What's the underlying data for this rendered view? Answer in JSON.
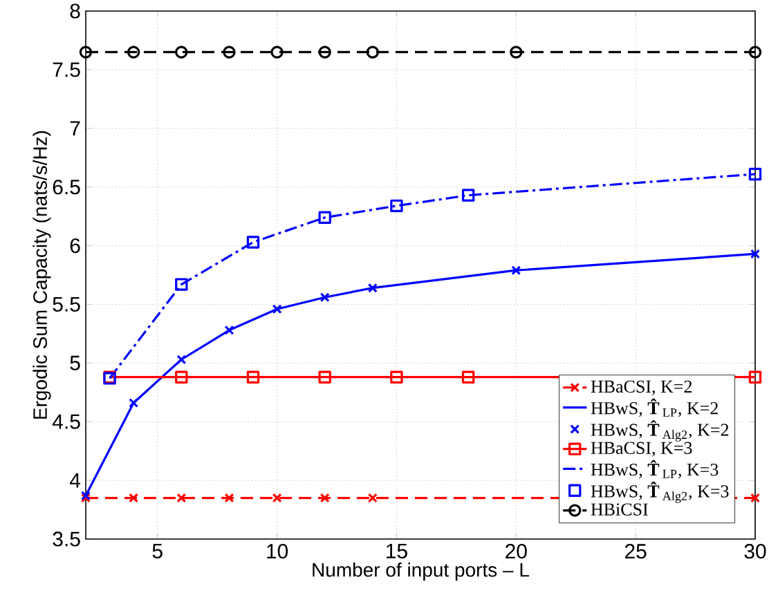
{
  "chart_data": {
    "type": "line",
    "xlabel": "Number of input ports – L",
    "ylabel": "Ergodic Sum Capacity (nats/s/Hz)",
    "xlim": [
      2,
      30
    ],
    "ylim": [
      3.5,
      8
    ],
    "xticks": [
      5,
      10,
      15,
      20,
      25,
      30
    ],
    "yticks": [
      3.5,
      4,
      4.5,
      5,
      5.5,
      6,
      6.5,
      7,
      7.5,
      8
    ],
    "grid": true,
    "legend": "bottom right",
    "series": [
      {
        "name": "HBaCSI, K=2",
        "color": "#ff0000",
        "marker": "cross",
        "line_style": "dashed",
        "x": [
          2,
          4,
          6,
          8,
          10,
          12,
          14,
          30
        ],
        "values": [
          3.85,
          3.85,
          3.85,
          3.85,
          3.85,
          3.85,
          3.85,
          3.85
        ]
      },
      {
        "name": "HBwS, **T̂**$_{LP}$, K=2",
        "color": "#0000ff",
        "marker": "none",
        "line_style": "solid",
        "x": [
          2,
          4,
          6,
          8,
          10,
          12,
          14,
          20,
          30
        ],
        "values": [
          3.87,
          4.66,
          5.03,
          5.28,
          5.46,
          5.56,
          5.64,
          5.79,
          5.93
        ]
      },
      {
        "name": "HBwS, **T̂**$_{Alg2}$, K=2",
        "color": "#0000ff",
        "type": "scatter",
        "marker": "cross",
        "x": [
          2,
          4,
          6,
          8,
          10,
          12,
          14,
          20,
          30
        ],
        "values": [
          3.87,
          4.66,
          5.03,
          5.28,
          5.46,
          5.56,
          5.64,
          5.79,
          5.93
        ]
      },
      {
        "name": "HBaCSI, K=3",
        "color": "#ff0000",
        "marker": "square",
        "line_style": "solid",
        "x": [
          3,
          6,
          9,
          12,
          15,
          18,
          30
        ],
        "values": [
          4.88,
          4.88,
          4.88,
          4.88,
          4.88,
          4.88,
          4.88
        ]
      },
      {
        "name": "HBwS, **T̂**$_{LP}$, K=3",
        "color": "#0000ff",
        "marker": "none",
        "line_style": "dashdot",
        "x": [
          3,
          6,
          9,
          12,
          15,
          18,
          30
        ],
        "values": [
          4.87,
          5.67,
          6.03,
          6.24,
          6.34,
          6.43,
          6.61
        ]
      },
      {
        "name": "HBwS, **T̂**$_{Alg2}$, K=3",
        "color": "#0000ff",
        "type": "scatter",
        "marker": "square",
        "x": [
          3,
          6,
          9,
          12,
          15,
          18,
          30
        ],
        "values": [
          4.87,
          5.67,
          6.03,
          6.24,
          6.34,
          6.43,
          6.61
        ]
      },
      {
        "name": "HBiCSI",
        "color": "#000000",
        "marker": "circle",
        "line_style": "dashed",
        "x": [
          2,
          4,
          6,
          8,
          10,
          12,
          14,
          20,
          30
        ],
        "values": [
          7.65,
          7.65,
          7.65,
          7.65,
          7.65,
          7.65,
          7.65,
          7.65,
          7.65
        ]
      }
    ]
  }
}
